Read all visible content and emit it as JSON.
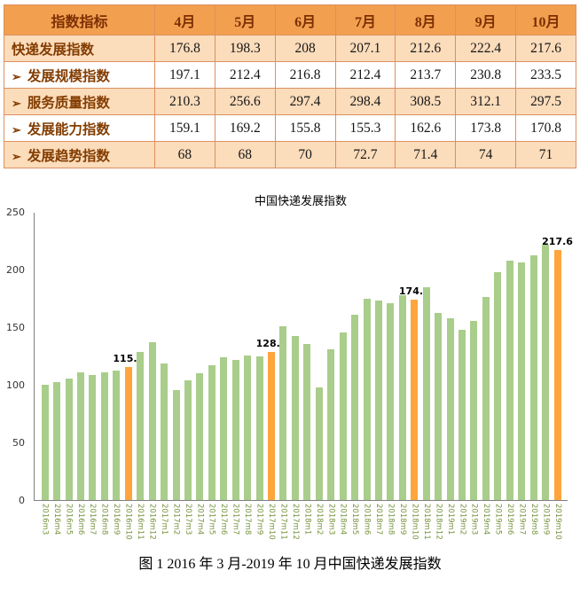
{
  "table": {
    "header": [
      "指数指标",
      "4月",
      "5月",
      "6月",
      "7月",
      "8月",
      "9月",
      "10月"
    ],
    "rows": [
      {
        "bullet": "",
        "label": "快递发展指数",
        "values": [
          "176.8",
          "198.3",
          "208",
          "207.1",
          "212.6",
          "222.4",
          "217.6"
        ]
      },
      {
        "bullet": "➢",
        "label": "发展规模指数",
        "values": [
          "197.1",
          "212.4",
          "216.8",
          "212.4",
          "213.7",
          "230.8",
          "233.5"
        ]
      },
      {
        "bullet": "➢",
        "label": "服务质量指数",
        "values": [
          "210.3",
          "256.6",
          "297.4",
          "298.4",
          "308.5",
          "312.1",
          "297.5"
        ]
      },
      {
        "bullet": "➢",
        "label": "发展能力指数",
        "values": [
          "159.1",
          "169.2",
          "155.8",
          "155.3",
          "162.6",
          "173.8",
          "170.8"
        ]
      },
      {
        "bullet": "➢",
        "label": "发展趋势指数",
        "values": [
          "68",
          "68",
          "70",
          "72.7",
          "71.4",
          "74",
          "71"
        ]
      }
    ]
  },
  "chart_data": {
    "type": "bar",
    "title": "中国快递发展指数",
    "xlabel": "",
    "ylabel": "",
    "ylim": [
      0,
      250
    ],
    "yticks": [
      0,
      50,
      100,
      150,
      200,
      250
    ],
    "grid": false,
    "legend": "none",
    "bar_color": "#A9CD8B",
    "highlight_color": "#FFA53C",
    "x": [
      "2016m3",
      "2016m4",
      "2016m5",
      "2016m6",
      "2016m7",
      "2016m8",
      "2016m9",
      "2016m10",
      "2016m11",
      "2016m12",
      "2017m1",
      "2017m2",
      "2017m3",
      "2017m4",
      "2017m5",
      "2017m6",
      "2017m7",
      "2017m8",
      "2017m9",
      "2017m10",
      "2017m11",
      "2017m12",
      "2018m1",
      "2018m2",
      "2018m3",
      "2018m4",
      "2018m5",
      "2018m6",
      "2018m7",
      "2018m8",
      "2018m9",
      "2018m10",
      "2018m11",
      "2018m12",
      "2019m1",
      "2019m2",
      "2019m3",
      "2019m4",
      "2019m5",
      "2019m6",
      "2019m7",
      "2019m8",
      "2019m9",
      "2019m10"
    ],
    "values": [
      100,
      102.5,
      106,
      111,
      108.5,
      111,
      113,
      115.5,
      129,
      137,
      119,
      95.5,
      104,
      110,
      117,
      124,
      122,
      126,
      125,
      128.6,
      151,
      143,
      136,
      98,
      131,
      146,
      161,
      175,
      174,
      171,
      178,
      174.4,
      185,
      163,
      158,
      148,
      156,
      176.8,
      198.3,
      208,
      207.1,
      212.6,
      222.4,
      217.6
    ],
    "highlights": [
      {
        "x": "2016m10",
        "label": "115.5"
      },
      {
        "x": "2017m10",
        "label": "128.6"
      },
      {
        "x": "2018m10",
        "label": "174.4"
      },
      {
        "x": "2019m10",
        "label": "217.6"
      }
    ]
  },
  "caption": "图 1 2016 年 3 月-2019 年 10 月中国快递发展指数",
  "colors": {
    "header_bg": "#F2A04F",
    "header_text": "#7E2F04",
    "label_text": "#833C00",
    "row_alt": "#FBDCBB",
    "border_color": "#DD9060",
    "axis_color": "#808080",
    "xlabel_color": "#76923C"
  }
}
